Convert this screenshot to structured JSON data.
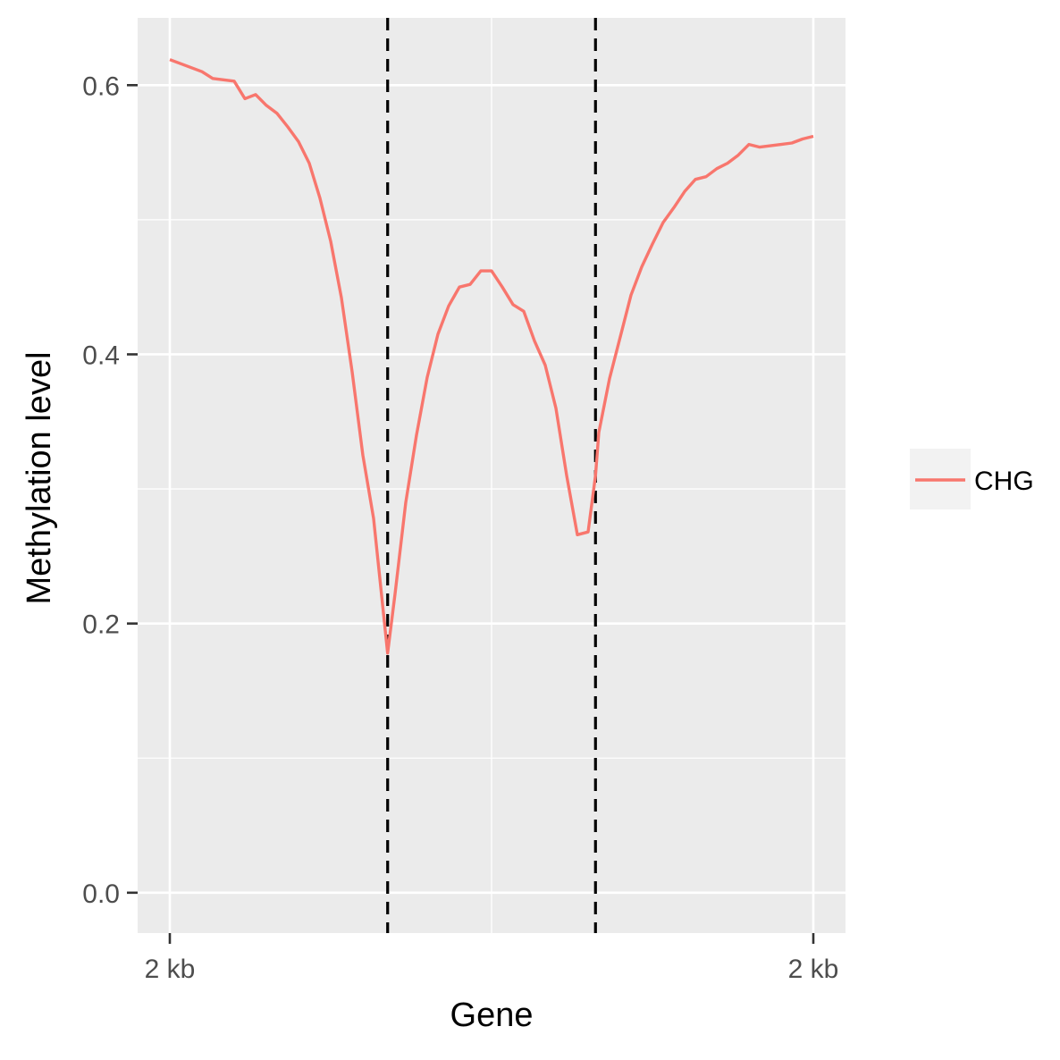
{
  "chart_data": {
    "type": "line",
    "xlabel": "Gene",
    "ylabel": "Methylation level",
    "xlim": [
      -0.05,
      1.05
    ],
    "ylim": [
      -0.03,
      0.65
    ],
    "x_ticks": [
      {
        "value": 0,
        "label": "2 kb"
      },
      {
        "value": 1,
        "label": "2 kb"
      }
    ],
    "y_ticks": [
      {
        "value": 0.0,
        "label": "0.0"
      },
      {
        "value": 0.2,
        "label": "0.2"
      },
      {
        "value": 0.4,
        "label": "0.4"
      },
      {
        "value": 0.6,
        "label": "0.6"
      }
    ],
    "y_minor_ticks": [
      0.1,
      0.3,
      0.5
    ],
    "x_minor_ticks": [
      0.5
    ],
    "vlines": [
      {
        "x": 0.3385,
        "style": "dashed",
        "color": "#000000"
      },
      {
        "x": 0.6615,
        "style": "dashed",
        "color": "#000000"
      }
    ],
    "grid": true,
    "legend": {
      "position": "right",
      "entries": [
        {
          "label": "CHG",
          "color": "#F8766D"
        }
      ]
    },
    "series": [
      {
        "name": "CHG",
        "color": "#F8766D",
        "x": [
          0.0,
          0.0167,
          0.0333,
          0.05,
          0.0667,
          0.0833,
          0.1,
          0.1167,
          0.1333,
          0.15,
          0.1667,
          0.1833,
          0.2,
          0.2167,
          0.2333,
          0.25,
          0.2667,
          0.2833,
          0.3,
          0.3167,
          0.3385,
          0.35,
          0.3667,
          0.3833,
          0.4,
          0.4167,
          0.4333,
          0.45,
          0.4667,
          0.4833,
          0.5,
          0.5167,
          0.5333,
          0.55,
          0.5667,
          0.5833,
          0.6,
          0.6167,
          0.6333,
          0.65,
          0.6615,
          0.6667,
          0.6833,
          0.7,
          0.7167,
          0.7333,
          0.75,
          0.7667,
          0.7833,
          0.8,
          0.8167,
          0.8333,
          0.85,
          0.8667,
          0.8833,
          0.9,
          0.9167,
          0.9333,
          0.95,
          0.9667,
          0.9833,
          1.0
        ],
        "values": [
          0.619,
          0.616,
          0.613,
          0.61,
          0.605,
          0.604,
          0.603,
          0.59,
          0.593,
          0.585,
          0.579,
          0.569,
          0.558,
          0.542,
          0.516,
          0.484,
          0.442,
          0.387,
          0.325,
          0.278,
          0.178,
          0.222,
          0.29,
          0.34,
          0.383,
          0.415,
          0.436,
          0.45,
          0.452,
          0.462,
          0.462,
          0.45,
          0.437,
          0.432,
          0.41,
          0.392,
          0.36,
          0.31,
          0.266,
          0.268,
          0.31,
          0.342,
          0.382,
          0.413,
          0.444,
          0.465,
          0.482,
          0.498,
          0.509,
          0.521,
          0.53,
          0.532,
          0.538,
          0.542,
          0.548,
          0.556,
          0.554,
          0.555,
          0.556,
          0.557,
          0.56,
          0.562
        ]
      }
    ]
  }
}
